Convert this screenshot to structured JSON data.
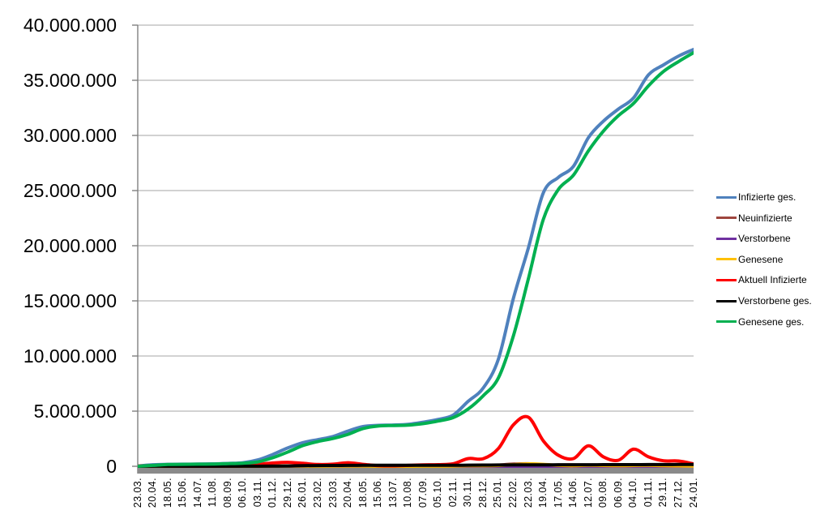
{
  "chart_data": {
    "type": "line",
    "title": "",
    "xlabel": "",
    "ylabel": "",
    "ylim": [
      0,
      40000000
    ],
    "y_tick_step": 5000000,
    "y_tick_labels": [
      "0",
      "5.000.000",
      "10.000.000",
      "15.000.000",
      "20.000.000",
      "25.000.000",
      "30.000.000",
      "35.000.000",
      "40.000.000"
    ],
    "grid": true,
    "legend_position": "right",
    "x_labels": [
      "23.03.",
      "20.04.",
      "18.05.",
      "15.06.",
      "14.07.",
      "11.08.",
      "08.09.",
      "06.10.",
      "03.11.",
      "01.12.",
      "29.12.",
      "26.01.",
      "23.02.",
      "23.03.",
      "20.04.",
      "18.05.",
      "15.06.",
      "13.07.",
      "10.08.",
      "07.09.",
      "05.10.",
      "02.11.",
      "30.11.",
      "28.12.",
      "25.01.",
      "22.02.",
      "22.03.",
      "19.04.",
      "17.05.",
      "14.06.",
      "12.07.",
      "09.08.",
      "06.09.",
      "04.10.",
      "01.11.",
      "29.11.",
      "27.12.",
      "24.01."
    ],
    "values_unit": "millions",
    "series": [
      {
        "name": "Infizierte ges.",
        "color": "#4F81BD",
        "values_millions": [
          0.03,
          0.14,
          0.18,
          0.19,
          0.2,
          0.22,
          0.26,
          0.32,
          0.58,
          1.08,
          1.67,
          2.15,
          2.42,
          2.7,
          3.2,
          3.6,
          3.71,
          3.74,
          3.81,
          4.0,
          4.25,
          4.65,
          5.9,
          7.1,
          9.7,
          15.2,
          19.8,
          24.8,
          26.2,
          27.2,
          29.8,
          31.3,
          32.4,
          33.4,
          35.5,
          36.4,
          37.2,
          37.8
        ]
      },
      {
        "name": "Neuinfizierte",
        "color": "#9E453E",
        "values_millions": [
          0.005,
          0.004,
          0.001,
          0.001,
          0.001,
          0.001,
          0.002,
          0.004,
          0.018,
          0.019,
          0.022,
          0.012,
          0.008,
          0.016,
          0.024,
          0.008,
          0.002,
          0.001,
          0.004,
          0.01,
          0.008,
          0.018,
          0.065,
          0.04,
          0.11,
          0.2,
          0.23,
          0.11,
          0.05,
          0.04,
          0.11,
          0.055,
          0.045,
          0.085,
          0.065,
          0.04,
          0.035,
          0.012
        ]
      },
      {
        "name": "Verstorbene",
        "color": "#7030A0",
        "values_millions": [
          0.0002,
          0.0015,
          0.0008,
          0.0002,
          0.0001,
          0.0001,
          0.0001,
          0.0002,
          0.0006,
          0.0025,
          0.0045,
          0.006,
          0.0035,
          0.0016,
          0.0017,
          0.0015,
          0.0007,
          0.0003,
          0.0002,
          0.0004,
          0.0005,
          0.0008,
          0.0021,
          0.0025,
          0.0016,
          0.0014,
          0.0016,
          0.0015,
          0.0008,
          0.0005,
          0.0007,
          0.0008,
          0.0006,
          0.0007,
          0.0009,
          0.001,
          0.0011,
          0.0008
        ]
      },
      {
        "name": "Genesene",
        "color": "#FFC000",
        "values_millions": [
          0.002,
          0.006,
          0.002,
          0.001,
          0.001,
          0.001,
          0.001,
          0.003,
          0.01,
          0.016,
          0.021,
          0.016,
          0.009,
          0.012,
          0.022,
          0.013,
          0.003,
          0.001,
          0.003,
          0.008,
          0.008,
          0.013,
          0.045,
          0.045,
          0.075,
          0.15,
          0.22,
          0.18,
          0.085,
          0.048,
          0.09,
          0.07,
          0.05,
          0.075,
          0.085,
          0.05,
          0.035,
          0.018
        ]
      },
      {
        "name": "Aktuell Infizierte",
        "color": "#FF0000",
        "values_millions": [
          0.02,
          0.05,
          0.03,
          0.01,
          0.01,
          0.01,
          0.02,
          0.04,
          0.17,
          0.3,
          0.36,
          0.27,
          0.16,
          0.19,
          0.32,
          0.18,
          0.06,
          0.04,
          0.08,
          0.13,
          0.15,
          0.23,
          0.7,
          0.69,
          1.6,
          3.75,
          4.45,
          2.3,
          1.0,
          0.7,
          1.85,
          0.85,
          0.55,
          1.55,
          0.85,
          0.5,
          0.48,
          0.22
        ]
      },
      {
        "name": "Verstorbene ges.",
        "color": "#000000",
        "values_millions": [
          0.0005,
          0.005,
          0.008,
          0.009,
          0.009,
          0.009,
          0.009,
          0.01,
          0.011,
          0.018,
          0.033,
          0.054,
          0.069,
          0.075,
          0.081,
          0.086,
          0.09,
          0.091,
          0.092,
          0.093,
          0.094,
          0.096,
          0.101,
          0.111,
          0.118,
          0.122,
          0.127,
          0.133,
          0.137,
          0.139,
          0.141,
          0.144,
          0.147,
          0.149,
          0.152,
          0.155,
          0.159,
          0.164
        ]
      },
      {
        "name": "Genesene ges.",
        "color": "#00B050",
        "values_millions": [
          0.01,
          0.08,
          0.16,
          0.18,
          0.19,
          0.2,
          0.24,
          0.28,
          0.4,
          0.78,
          1.3,
          1.88,
          2.25,
          2.52,
          2.9,
          3.42,
          3.65,
          3.7,
          3.73,
          3.87,
          4.1,
          4.42,
          5.2,
          6.4,
          8.0,
          11.8,
          17.0,
          22.4,
          25.1,
          26.4,
          28.6,
          30.4,
          31.8,
          32.9,
          34.5,
          35.8,
          36.7,
          37.5
        ]
      }
    ],
    "style": {
      "gridline_color": "#A6A6A6",
      "axis_color": "#808080",
      "x_axis_band_color": "#8A8A8A",
      "line_width": 4
    }
  }
}
